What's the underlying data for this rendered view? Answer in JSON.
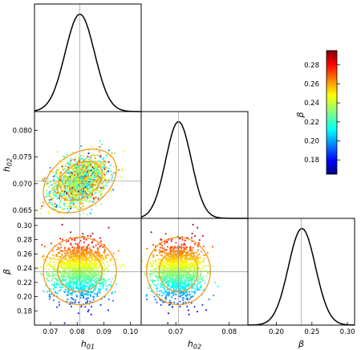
{
  "chart_data": {
    "type": "scatter",
    "subtype": "corner-plot",
    "parameters": [
      {
        "key": "h01",
        "label_main": "h",
        "label_sub": "01",
        "value": 0.081,
        "range": [
          0.064,
          0.104
        ],
        "ticks": [
          "0.07",
          "0.08",
          "0.09",
          "0.10"
        ],
        "tick_values": [
          0.07,
          0.08,
          0.09,
          0.1
        ]
      },
      {
        "key": "h02",
        "label_main": "h",
        "label_sub": "02",
        "value": 0.0705,
        "range": [
          0.0635,
          0.0835
        ],
        "ticks": [
          "0.065",
          "0.070",
          "0.075",
          "0.080"
        ],
        "tick_values": [
          0.065,
          0.07,
          0.075,
          0.08
        ],
        "bottom_ticks": [
          "0.07",
          "0.08"
        ],
        "bottom_tick_values": [
          0.07,
          0.08
        ]
      },
      {
        "key": "beta",
        "label_main": "β",
        "label_sub": "",
        "value": 0.235,
        "range": [
          0.16,
          0.31
        ],
        "ticks": [
          "0.18",
          "0.20",
          "0.22",
          "0.24",
          "0.26",
          "0.28",
          "0.30"
        ],
        "tick_values": [
          0.18,
          0.2,
          0.22,
          0.24,
          0.26,
          0.28,
          0.3
        ],
        "bottom_ticks": [
          "0.20",
          "0.25",
          "0.30"
        ],
        "bottom_tick_values": [
          0.2,
          0.25,
          0.3
        ]
      }
    ],
    "marginals": [
      {
        "param": "h01",
        "mean": 0.081,
        "sd": 0.0055
      },
      {
        "param": "h02",
        "mean": 0.0705,
        "sd": 0.0024
      },
      {
        "param": "beta",
        "mean": 0.236,
        "sd": 0.019
      }
    ],
    "samples": {
      "n": 1500,
      "color_by": "beta"
    },
    "contour_levels": [
      "1σ",
      "2σ"
    ],
    "colorbar": {
      "label": "β",
      "range": [
        0.165,
        0.295
      ],
      "ticks": [
        "0.20",
        "0.22",
        "0.24",
        "0.26",
        "0.28",
        "0.18"
      ],
      "tick_values": [
        0.2,
        0.22,
        0.24,
        0.26,
        0.28,
        0.18
      ],
      "colormap": "jet"
    },
    "grid": false,
    "colors": {
      "contour": "#f39a1a",
      "pdf": "#000000",
      "reference": "#9a9a9a"
    }
  }
}
